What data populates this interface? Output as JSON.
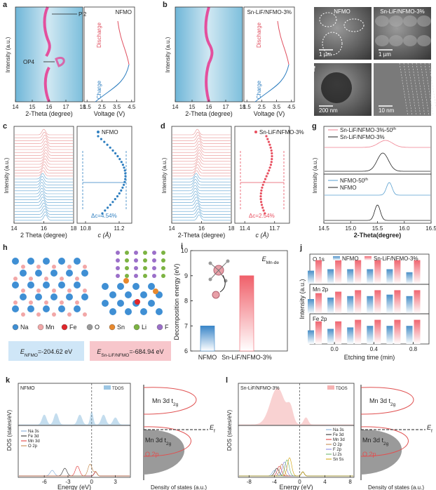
{
  "a": {
    "label": "a",
    "ylabel": "Intensity (a.u.)",
    "xlim": [
      14,
      18
    ],
    "xticks": [
      14,
      15,
      16,
      17,
      18
    ],
    "xlabel": "2-Theta (degree)",
    "peaks": [
      "P'2",
      "OP4"
    ],
    "title": "NFMO",
    "discharge": "Discharge",
    "charge": "Charge",
    "vlim": [
      1.3,
      4.7
    ],
    "vticks": [
      1.5,
      2.5,
      3.5,
      4.5
    ],
    "vlabel": "Voltage (V)"
  },
  "b": {
    "label": "b",
    "ylabel": "Intensity (a.u.)",
    "xlim": [
      14,
      18
    ],
    "xticks": [
      14,
      15,
      16,
      17,
      18
    ],
    "xlabel": "2-Theta (degree)",
    "title": "Sn-LiF/NFMO-3%",
    "discharge": "Discharge",
    "charge": "Charge",
    "vlim": [
      1.3,
      4.7
    ],
    "vticks": [
      1.5,
      2.5,
      3.5,
      4.5
    ],
    "vlabel": "Voltage (V)"
  },
  "e": {
    "label": "e",
    "left": "NFMO",
    "right": "Sn-LiF/NFMO-3%",
    "scale_left": "1 µm",
    "scale_right": "1 µm"
  },
  "f": {
    "label": "f",
    "scale_left": "200 nm",
    "scale_right": "10 nm"
  },
  "c": {
    "label": "c",
    "ylabel": "Intensity (a.u.)",
    "xlim": [
      14,
      18
    ],
    "xticks": [
      14,
      16,
      18
    ],
    "xlabel": "2 Theta (degree)",
    "legend": "NFMO",
    "delta": "Δc=4.54%",
    "clim": [
      10.7,
      11.35
    ],
    "cticks": [
      10.8,
      11.2
    ],
    "clabel": "c (Å)"
  },
  "d": {
    "label": "d",
    "ylabel": "Intensity (a.u.)",
    "xlim": [
      14,
      18
    ],
    "xticks": [
      14,
      16,
      18
    ],
    "xlabel": "2-Theta (degree)",
    "legend": "Sn-LiF/NFMO-3%",
    "delta": "Δc=2.54%",
    "clim": [
      11.3,
      11.85
    ],
    "cticks": [
      11.4,
      11.7
    ],
    "clabel": "c (Å)"
  },
  "g": {
    "label": "g",
    "legend_top": [
      {
        "main": "Sn-LiF/NFMO-3%-50",
        "sup": "th"
      },
      "Sn-LiF/NFMO-3%"
    ],
    "legend_bottom": [
      {
        "main": "NFMO-50",
        "sup": "th"
      },
      "NFMO"
    ],
    "ylabel": "Intensity (a.u.)",
    "xlim": [
      14.5,
      16.5
    ],
    "xticks": [
      14.5,
      {
        "value": 15,
        "label": "15.0"
      },
      15.5,
      {
        "value": 16,
        "label": "16.0"
      },
      16.5
    ],
    "xlabel": "2-Theta(degree)"
  },
  "h": {
    "label": "h",
    "elements": [
      "Na",
      "Mn",
      "Fe",
      "O",
      "Sn",
      "Li",
      "F"
    ],
    "colors": [
      "#3f8fd4",
      "#f2a7a7",
      "#e0262b",
      "#9a9a9a",
      "#e8892e",
      "#7cb342",
      "#9b6fc9"
    ],
    "energy_left": {
      "main": "E",
      "sub": "NFMO",
      "rest": "=-204.62 eV"
    },
    "energy_right": {
      "main": "E",
      "sub": "Sn-LiF/NFMO",
      "rest": "=-684.94 eV"
    }
  },
  "i": {
    "label": "i",
    "type": "bar",
    "ylabel": "Decomposition energy (eV)",
    "ylim": [
      6,
      10
    ],
    "yticks": [
      6,
      7,
      8,
      9,
      10
    ],
    "annotation": {
      "main": "E",
      "sub": "Mn-de"
    },
    "categories": [
      "NFMO",
      "Sn-LiF/NFMO-3%"
    ],
    "values": [
      7.0,
      9.0
    ],
    "colors": [
      "#3a86c8",
      "#f0606a"
    ]
  },
  "j": {
    "label": "j",
    "type": "bar",
    "series": [
      {
        "name": "NFMO",
        "color": "#4a90c8"
      },
      {
        "name": "Sn-LiF/NFMO-3%",
        "color": "#f06570"
      }
    ],
    "ylabel": "Intensity (a.u.)",
    "xlabel": "Etching time (min)",
    "xlim": [
      -0.25,
      0.96
    ],
    "xticks": [
      {
        "value": 0,
        "label": "0.0"
      },
      0.4,
      0.8
    ],
    "x": [
      -0.2,
      0,
      0.2,
      0.4,
      0.6,
      0.8
    ],
    "ylim": [
      0,
      1
    ],
    "panels": [
      {
        "name": "O 1s",
        "series": [
          {
            "values": [
              0.45,
              0.5,
              0.5,
              0.5,
              0.5,
              0.4
            ]
          },
          {
            "values": [
              0.8,
              0.8,
              0.8,
              0.8,
              0.8,
              0.8
            ]
          }
        ]
      },
      {
        "name": "Mn 2p",
        "series": [
          {
            "values": [
              0.5,
              0.55,
              0.6,
              0.6,
              0.65,
              0.6
            ]
          },
          {
            "values": [
              0.7,
              0.75,
              0.8,
              0.8,
              0.8,
              0.8
            ]
          }
        ]
      },
      {
        "name": "Fe 2p",
        "series": [
          {
            "values": [
              0.45,
              0.5,
              0.55,
              0.6,
              0.6,
              0.6
            ]
          },
          {
            "values": [
              0.75,
              0.75,
              0.8,
              0.8,
              0.8,
              0.8
            ]
          }
        ]
      }
    ]
  },
  "k": {
    "label": "k",
    "title": "NFMO",
    "tdos": "TDOS",
    "ylabel": "DOS (states/eV)",
    "legend": [
      "Na 3s",
      "Fe 3d",
      "Mn 3d",
      "O 2p"
    ],
    "legend_colors": [
      "#7aa6d6",
      "#222222",
      "#e03030",
      "#c08040"
    ],
    "xlim": [
      -9.3,
      4.9
    ],
    "xticks": [
      -6,
      -3,
      0,
      3
    ],
    "xlabel": "Energy (eV)",
    "upper": {
      "main": "Mn 3d t",
      "sub": "2g"
    },
    "ef": {
      "main": "E",
      "sub": "f"
    },
    "lower": {
      "main": "Mn 3d t",
      "sub": "2g"
    },
    "o2p": "O 2p",
    "dos_label": "Density of states (a.u.)"
  },
  "l": {
    "label": "l",
    "title": "Sn-LiF/NFMO-3%",
    "tdos": "TDOS",
    "ylabel": "DOS (states/eV)",
    "legend": [
      "Na 3s",
      "Fe 3d",
      "Mn 3d",
      "O 2p",
      "F 2p",
      "Li 2s",
      "Sn 5s"
    ],
    "legend_colors": [
      "#7aa6d6",
      "#222222",
      "#e03030",
      "#c08040",
      "#8080e0",
      "#60b060",
      "#d0a000"
    ],
    "xlim": [
      -9.7,
      8.6
    ],
    "xticks": [
      -8,
      -4,
      0,
      4,
      8
    ],
    "xlabel": "Energy (eV)",
    "upper": {
      "main": "Mn 3d t",
      "sub": "2g"
    },
    "ef": {
      "main": "E",
      "sub": "f"
    },
    "lower": {
      "main": "Mn 3d t",
      "sub": "2g"
    },
    "o2p": "O 2p",
    "dos_label": "Density of states (a.u.)"
  }
}
